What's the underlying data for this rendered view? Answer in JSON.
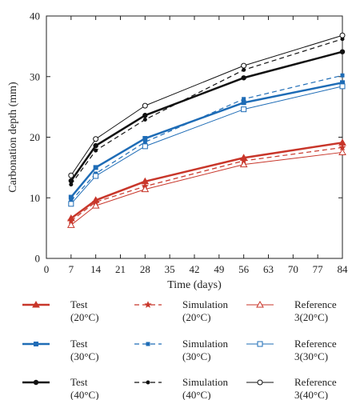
{
  "chart_data": {
    "type": "line",
    "title": "",
    "xlabel": "Time (days)",
    "ylabel": "Carbonation depth (mm)",
    "xlim": [
      0,
      84
    ],
    "ylim": [
      0,
      40
    ],
    "xticks": [
      0,
      7,
      14,
      21,
      28,
      35,
      42,
      49,
      56,
      63,
      70,
      77,
      84
    ],
    "yticks": [
      0,
      10,
      20,
      30,
      40
    ],
    "grid": false,
    "legend_position": "bottom",
    "x": [
      7,
      14,
      28,
      56,
      84
    ],
    "series": [
      {
        "name": [
          "Test",
          "(20°C)"
        ],
        "color": "#c8362a",
        "style": "solid",
        "width": 2.5,
        "marker": "triangle-filled",
        "values": [
          6.6,
          9.6,
          12.7,
          16.6,
          19.1
        ]
      },
      {
        "name": [
          "Simulation",
          "(20°C)"
        ],
        "color": "#c8362a",
        "style": "dashed",
        "width": 1.2,
        "marker": "star",
        "values": [
          6.2,
          9.3,
          11.9,
          16.1,
          18.3
        ]
      },
      {
        "name": [
          "Reference",
          "3(20°C)"
        ],
        "color": "#c8362a",
        "style": "solid",
        "width": 1.0,
        "marker": "triangle-open",
        "values": [
          5.5,
          8.7,
          11.4,
          15.5,
          17.5
        ]
      },
      {
        "name": [
          "Test",
          "(30°C)"
        ],
        "color": "#1e6cb6",
        "style": "solid",
        "width": 2.5,
        "marker": "square-filled",
        "values": [
          10.1,
          15.0,
          19.8,
          25.7,
          29.0
        ]
      },
      {
        "name": [
          "Simulation",
          "(30°C)"
        ],
        "color": "#1e6cb6",
        "style": "dashed",
        "width": 1.2,
        "marker": "square-filled-small",
        "values": [
          9.5,
          14.0,
          19.2,
          26.3,
          30.2
        ]
      },
      {
        "name": [
          "Reference",
          "3(30°C)"
        ],
        "color": "#1e6cb6",
        "style": "solid",
        "width": 1.0,
        "marker": "square-open",
        "values": [
          9.0,
          13.6,
          18.5,
          24.6,
          28.4
        ]
      },
      {
        "name": [
          "Test",
          "(40°C)"
        ],
        "color": "#111111",
        "style": "solid",
        "width": 2.5,
        "marker": "circle-filled",
        "values": [
          12.8,
          18.6,
          23.6,
          29.8,
          34.1
        ]
      },
      {
        "name": [
          "Simulation",
          "(40°C)"
        ],
        "color": "#111111",
        "style": "dashed",
        "width": 1.2,
        "marker": "circle-filled-small",
        "values": [
          12.2,
          17.8,
          22.9,
          31.1,
          36.2
        ]
      },
      {
        "name": [
          "Reference",
          "3(40°C)"
        ],
        "color": "#111111",
        "style": "solid",
        "width": 1.0,
        "marker": "circle-open",
        "values": [
          13.7,
          19.7,
          25.2,
          31.8,
          36.8
        ]
      }
    ]
  }
}
